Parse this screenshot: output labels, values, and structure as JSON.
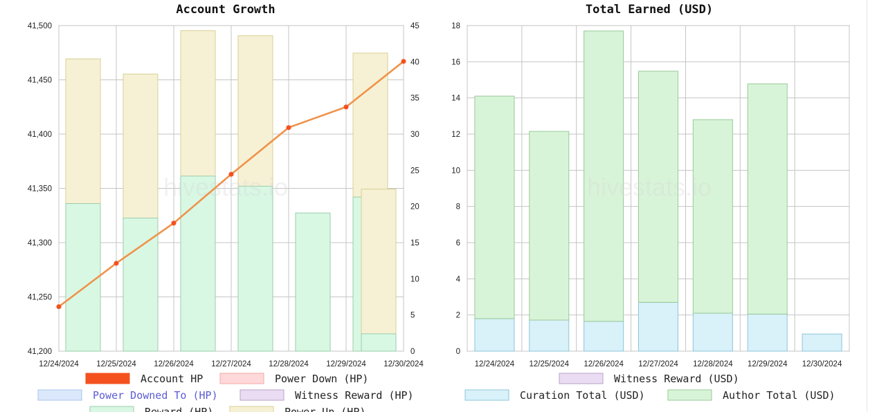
{
  "watermark": "hivestats.io",
  "chart_data": [
    {
      "type": "bar",
      "title": "Account Growth",
      "categories": [
        "12/24/2024",
        "12/25/2024",
        "12/26/2024",
        "12/27/2024",
        "12/28/2024",
        "12/29/2024",
        "12/30/2024"
      ],
      "x_tick_labels": [
        "12/24/2024",
        "12/25/2024",
        "12/26/2024",
        "12/27/2024",
        "12/28/2024",
        "12/29/2024",
        "12/30/2024"
      ],
      "y_left": {
        "range": [
          41200,
          41500
        ],
        "ticks": [
          "41,200",
          "41,250",
          "41,300",
          "41,350",
          "41,400",
          "41,450",
          "41,500"
        ]
      },
      "y_right": {
        "range": [
          0,
          45
        ],
        "ticks": [
          "0",
          "5",
          "10",
          "15",
          "20",
          "25",
          "30",
          "35",
          "40",
          "45"
        ]
      },
      "grid": true,
      "legend_position": "bottom",
      "series": [
        {
          "name": "Account HP",
          "kind": "line",
          "axis": "left",
          "color": "#f4511e",
          "line_color": "#f0924a",
          "values": [
            41241,
            41281,
            41318,
            41363,
            41406,
            41425,
            41467
          ]
        },
        {
          "name": "Power Down (HP)",
          "kind": "bar",
          "axis": "right",
          "color": "#ffd9d9",
          "values": [
            0,
            0,
            0,
            0,
            0,
            0,
            0
          ]
        },
        {
          "name": "Power Downed To (HP)",
          "kind": "bar",
          "axis": "right",
          "color": "#dbe8fb",
          "values": [
            0,
            0,
            0,
            0,
            0,
            0,
            0
          ]
        },
        {
          "name": "Witness Reward (HP)",
          "kind": "bar",
          "axis": "right",
          "color": "#eadcf2",
          "values": [
            0,
            0,
            0,
            0,
            0,
            0,
            0
          ]
        },
        {
          "name": "Reward (HP)",
          "kind": "bar",
          "axis": "right",
          "color": "#d8f8e4",
          "stroke": "#9ccbaa",
          "values": [
            20.4,
            18.4,
            24.2,
            22.8,
            19.1,
            21.3,
            2.4
          ]
        },
        {
          "name": "Power Up (HP)",
          "kind": "bar",
          "axis": "right",
          "color": "#f6f1d4",
          "stroke": "#d8cf95",
          "values": [
            40.4,
            38.3,
            44.3,
            43.6,
            0,
            41.2,
            22.4
          ]
        }
      ],
      "legend": [
        {
          "label": "Account HP",
          "color": "#f4511e",
          "stroke": "#f4511e"
        },
        {
          "label": "Power Down (HP)",
          "color": "#ffd9d9",
          "stroke": "#f3a6a6"
        },
        {
          "label": "Power Downed To (HP)",
          "color": "#dbe8fb",
          "stroke": "#a9c4ec"
        },
        {
          "label": "Witness Reward (HP)",
          "color": "#eadcf2",
          "stroke": "#b9a2c8"
        },
        {
          "label": "Reward (HP)",
          "color": "#d8f8e4",
          "stroke": "#9ccbaa"
        },
        {
          "label": "Power Up (HP)",
          "color": "#f6f1d4",
          "stroke": "#d8cf95"
        }
      ]
    },
    {
      "type": "bar",
      "title": "Total Earned (USD)",
      "categories": [
        "12/24/2024",
        "12/25/2024",
        "12/26/2024",
        "12/27/2024",
        "12/28/2024",
        "12/29/2024",
        "12/30/2024"
      ],
      "y": {
        "range": [
          0,
          18
        ],
        "ticks": [
          "0",
          "2",
          "4",
          "6",
          "8",
          "10",
          "12",
          "14",
          "16",
          "18"
        ]
      },
      "grid": true,
      "legend_position": "bottom",
      "stacked": true,
      "series": [
        {
          "name": "Curation Total (USD)",
          "color": "#d9f1f9",
          "stroke": "#8cc5d9",
          "values": [
            1.8,
            1.72,
            1.65,
            2.7,
            2.1,
            2.05,
            0.95
          ]
        },
        {
          "name": "Author Total (USD)",
          "color": "#d8f4d8",
          "stroke": "#98c998",
          "values": [
            12.3,
            10.43,
            16.05,
            12.78,
            10.7,
            12.73,
            0
          ]
        },
        {
          "name": "Witness Reward (USD)",
          "color": "#eadcf2",
          "stroke": "#b9a2c8",
          "values": [
            0,
            0,
            0,
            0,
            0,
            0,
            0
          ]
        }
      ],
      "legend": [
        {
          "label": "Witness Reward (USD)",
          "color": "#eadcf2",
          "stroke": "#b9a2c8"
        },
        {
          "label": "Curation Total (USD)",
          "color": "#d9f1f9",
          "stroke": "#8cc5d9"
        },
        {
          "label": "Author Total (USD)",
          "color": "#d8f4d8",
          "stroke": "#98c998"
        }
      ]
    }
  ]
}
